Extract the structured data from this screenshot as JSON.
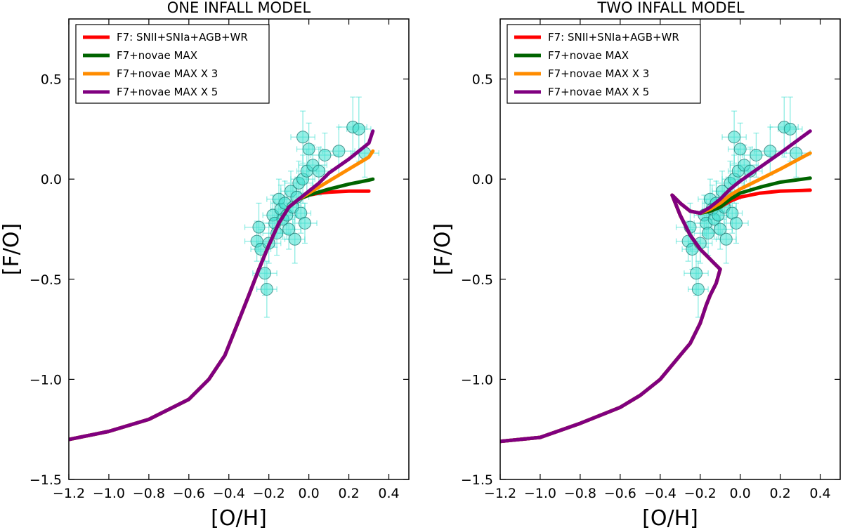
{
  "figure_titles": [
    "ONE INFALL MODEL",
    "TWO INFALL MODEL"
  ],
  "chart_data": [
    {
      "type": "line",
      "title": "ONE INFALL MODEL",
      "xlabel": "[O/H]",
      "ylabel": "[F/O]",
      "xlim": [
        -1.2,
        0.5
      ],
      "ylim": [
        -1.5,
        0.8
      ],
      "xticks": [
        -1.2,
        -1.0,
        -0.8,
        -0.6,
        -0.4,
        -0.2,
        0.0,
        0.2,
        0.4
      ],
      "xtick_labels": [
        "−1.2",
        "−1.0",
        "−0.8",
        "−0.6",
        "−0.4",
        "−0.2",
        "0.0",
        "0.2",
        "0.4"
      ],
      "yticks": [
        -1.5,
        -1.0,
        -0.5,
        0.0,
        0.5
      ],
      "ytick_labels": [
        "−1.5",
        "−1.0",
        "−0.5",
        "0.0",
        "0.5"
      ],
      "grid": false,
      "legend_position": "top-left",
      "series": [
        {
          "name": "F7: SNII+SNIa+AGB+WR",
          "color": "#ff0000",
          "x": [
            -1.2,
            -1.0,
            -0.8,
            -0.6,
            -0.5,
            -0.42,
            -0.36,
            -0.3,
            -0.25,
            -0.2,
            -0.15,
            -0.1,
            -0.05,
            0.0,
            0.05,
            0.1,
            0.2,
            0.3
          ],
          "y": [
            -1.3,
            -1.26,
            -1.2,
            -1.1,
            -1.0,
            -0.88,
            -0.73,
            -0.58,
            -0.45,
            -0.33,
            -0.22,
            -0.14,
            -0.1,
            -0.08,
            -0.07,
            -0.065,
            -0.06,
            -0.06
          ]
        },
        {
          "name": "F7+novae  MAX",
          "color": "#006400",
          "x": [
            -1.2,
            -1.0,
            -0.8,
            -0.6,
            -0.5,
            -0.42,
            -0.36,
            -0.3,
            -0.25,
            -0.2,
            -0.15,
            -0.1,
            -0.05,
            0.0,
            0.05,
            0.1,
            0.2,
            0.3,
            0.32
          ],
          "y": [
            -1.3,
            -1.26,
            -1.2,
            -1.1,
            -1.0,
            -0.88,
            -0.73,
            -0.58,
            -0.45,
            -0.33,
            -0.22,
            -0.14,
            -0.1,
            -0.08,
            -0.065,
            -0.05,
            -0.025,
            -0.005,
            0.0
          ]
        },
        {
          "name": "F7+novae MAX X 3",
          "color": "#ff8c00",
          "x": [
            -1.2,
            -1.0,
            -0.8,
            -0.6,
            -0.5,
            -0.42,
            -0.36,
            -0.3,
            -0.25,
            -0.2,
            -0.15,
            -0.1,
            -0.05,
            0.0,
            0.05,
            0.1,
            0.2,
            0.3,
            0.32
          ],
          "y": [
            -1.3,
            -1.26,
            -1.2,
            -1.1,
            -1.0,
            -0.88,
            -0.73,
            -0.58,
            -0.45,
            -0.33,
            -0.22,
            -0.14,
            -0.1,
            -0.07,
            -0.04,
            -0.01,
            0.05,
            0.11,
            0.14
          ]
        },
        {
          "name": "F7+novae MAX  X 5",
          "color": "#800080",
          "x": [
            -1.2,
            -1.0,
            -0.8,
            -0.6,
            -0.5,
            -0.42,
            -0.36,
            -0.3,
            -0.25,
            -0.2,
            -0.15,
            -0.1,
            -0.05,
            0.0,
            0.05,
            0.1,
            0.2,
            0.3,
            0.32
          ],
          "y": [
            -1.3,
            -1.26,
            -1.2,
            -1.1,
            -1.0,
            -0.88,
            -0.73,
            -0.58,
            -0.45,
            -0.33,
            -0.22,
            -0.14,
            -0.1,
            -0.06,
            -0.02,
            0.03,
            0.1,
            0.18,
            0.24
          ]
        }
      ],
      "observations": {
        "color": "#40e0d0",
        "x": [
          -0.26,
          -0.25,
          -0.24,
          -0.22,
          -0.21,
          -0.2,
          -0.18,
          -0.17,
          -0.16,
          -0.15,
          -0.14,
          -0.13,
          -0.12,
          -0.11,
          -0.1,
          -0.09,
          -0.08,
          -0.07,
          -0.06,
          -0.05,
          -0.04,
          -0.03,
          -0.02,
          -0.01,
          0.0,
          0.02,
          0.05,
          0.08,
          0.15,
          0.22,
          0.25,
          0.28,
          -0.03
        ],
        "y": [
          -0.31,
          -0.24,
          -0.35,
          -0.47,
          -0.55,
          -0.32,
          -0.18,
          -0.22,
          -0.27,
          -0.1,
          -0.15,
          -0.2,
          -0.12,
          -0.18,
          -0.25,
          -0.06,
          -0.14,
          -0.3,
          -0.09,
          -0.02,
          -0.17,
          0.0,
          -0.22,
          0.04,
          0.15,
          0.07,
          0.04,
          0.12,
          0.14,
          0.26,
          0.25,
          0.13,
          0.21
        ],
        "xerr": [
          0.06,
          0.07,
          0.05,
          0.06,
          0.05,
          0.06,
          0.05,
          0.06,
          0.07,
          0.06,
          0.05,
          0.06,
          0.07,
          0.05,
          0.06,
          0.05,
          0.06,
          0.05,
          0.06,
          0.07,
          0.05,
          0.06,
          0.06,
          0.05,
          0.06,
          0.07,
          0.06,
          0.07,
          0.08,
          0.07,
          0.06,
          0.07,
          0.06
        ],
        "yerr": [
          0.1,
          0.12,
          0.1,
          0.11,
          0.14,
          0.1,
          0.1,
          0.12,
          0.11,
          0.1,
          0.12,
          0.1,
          0.11,
          0.12,
          0.1,
          0.1,
          0.11,
          0.12,
          0.1,
          0.11,
          0.1,
          0.12,
          0.1,
          0.11,
          0.13,
          0.1,
          0.12,
          0.11,
          0.12,
          0.15,
          0.16,
          0.12,
          0.13
        ]
      }
    },
    {
      "type": "line",
      "title": "TWO INFALL MODEL",
      "xlabel": "[O/H]",
      "ylabel": "[F/O]",
      "xlim": [
        -1.2,
        0.5
      ],
      "ylim": [
        -1.5,
        0.8
      ],
      "xticks": [
        -1.2,
        -1.0,
        -0.8,
        -0.6,
        -0.4,
        -0.2,
        0.0,
        0.2,
        0.4
      ],
      "xtick_labels": [
        "−1.2",
        "−1.0",
        "−0.8",
        "−0.6",
        "−0.4",
        "−0.2",
        "0.0",
        "0.2",
        "0.4"
      ],
      "yticks": [
        -1.5,
        -1.0,
        -0.5,
        0.0,
        0.5
      ],
      "ytick_labels": [
        "−1.5",
        "−1.0",
        "−0.5",
        "0.0",
        "0.5"
      ],
      "grid": false,
      "legend_position": "top-left",
      "series": [
        {
          "name": "F7: SNII+SNIa+AGB+WR",
          "color": "#ff0000",
          "x": [
            -1.2,
            -1.0,
            -0.8,
            -0.6,
            -0.5,
            -0.4,
            -0.3,
            -0.25,
            -0.2,
            -0.17,
            -0.15,
            -0.12,
            -0.1,
            -0.13,
            -0.16,
            -0.2,
            -0.25,
            -0.3,
            -0.34,
            -0.3,
            -0.25,
            -0.2,
            -0.15,
            -0.1,
            -0.05,
            0.0,
            0.1,
            0.2,
            0.35
          ],
          "y": [
            -1.31,
            -1.29,
            -1.22,
            -1.14,
            -1.08,
            -1.0,
            -0.88,
            -0.82,
            -0.72,
            -0.63,
            -0.58,
            -0.52,
            -0.45,
            -0.42,
            -0.39,
            -0.35,
            -0.28,
            -0.18,
            -0.08,
            -0.12,
            -0.16,
            -0.17,
            -0.16,
            -0.14,
            -0.11,
            -0.09,
            -0.07,
            -0.06,
            -0.055
          ]
        },
        {
          "name": "F7+novae  MAX",
          "color": "#006400",
          "x": [
            -1.2,
            -1.0,
            -0.8,
            -0.6,
            -0.5,
            -0.4,
            -0.3,
            -0.25,
            -0.2,
            -0.17,
            -0.15,
            -0.12,
            -0.1,
            -0.13,
            -0.16,
            -0.2,
            -0.25,
            -0.3,
            -0.34,
            -0.3,
            -0.25,
            -0.2,
            -0.15,
            -0.1,
            -0.05,
            0.0,
            0.1,
            0.2,
            0.35
          ],
          "y": [
            -1.31,
            -1.29,
            -1.22,
            -1.14,
            -1.08,
            -1.0,
            -0.88,
            -0.82,
            -0.72,
            -0.63,
            -0.58,
            -0.52,
            -0.45,
            -0.42,
            -0.39,
            -0.35,
            -0.28,
            -0.18,
            -0.08,
            -0.12,
            -0.16,
            -0.17,
            -0.16,
            -0.14,
            -0.1,
            -0.07,
            -0.04,
            -0.015,
            0.005
          ]
        },
        {
          "name": "F7+novae MAX X 3",
          "color": "#ff8c00",
          "x": [
            -1.2,
            -1.0,
            -0.8,
            -0.6,
            -0.5,
            -0.4,
            -0.3,
            -0.25,
            -0.2,
            -0.17,
            -0.15,
            -0.12,
            -0.1,
            -0.13,
            -0.16,
            -0.2,
            -0.25,
            -0.3,
            -0.34,
            -0.3,
            -0.25,
            -0.2,
            -0.15,
            -0.1,
            -0.05,
            0.0,
            0.1,
            0.2,
            0.35
          ],
          "y": [
            -1.31,
            -1.29,
            -1.22,
            -1.14,
            -1.08,
            -1.0,
            -0.88,
            -0.82,
            -0.72,
            -0.63,
            -0.58,
            -0.52,
            -0.45,
            -0.42,
            -0.39,
            -0.35,
            -0.28,
            -0.18,
            -0.08,
            -0.12,
            -0.16,
            -0.17,
            -0.15,
            -0.12,
            -0.08,
            -0.05,
            0.0,
            0.05,
            0.13
          ]
        },
        {
          "name": "F7+novae MAX  X 5",
          "color": "#800080",
          "x": [
            -1.2,
            -1.0,
            -0.8,
            -0.6,
            -0.5,
            -0.4,
            -0.3,
            -0.25,
            -0.2,
            -0.17,
            -0.15,
            -0.12,
            -0.1,
            -0.13,
            -0.16,
            -0.2,
            -0.25,
            -0.3,
            -0.34,
            -0.3,
            -0.25,
            -0.2,
            -0.15,
            -0.1,
            -0.05,
            0.0,
            0.1,
            0.2,
            0.35
          ],
          "y": [
            -1.31,
            -1.29,
            -1.22,
            -1.14,
            -1.08,
            -1.0,
            -0.88,
            -0.82,
            -0.72,
            -0.63,
            -0.58,
            -0.52,
            -0.45,
            -0.42,
            -0.39,
            -0.35,
            -0.28,
            -0.18,
            -0.08,
            -0.12,
            -0.16,
            -0.17,
            -0.14,
            -0.1,
            -0.05,
            -0.01,
            0.06,
            0.13,
            0.24
          ]
        }
      ],
      "observations": {
        "color": "#40e0d0",
        "x": [
          -0.26,
          -0.25,
          -0.24,
          -0.22,
          -0.21,
          -0.2,
          -0.18,
          -0.17,
          -0.16,
          -0.15,
          -0.14,
          -0.13,
          -0.12,
          -0.11,
          -0.1,
          -0.09,
          -0.08,
          -0.07,
          -0.06,
          -0.05,
          -0.04,
          -0.03,
          -0.02,
          -0.01,
          0.0,
          0.02,
          0.05,
          0.08,
          0.15,
          0.22,
          0.25,
          0.28,
          -0.03
        ],
        "y": [
          -0.31,
          -0.24,
          -0.35,
          -0.47,
          -0.55,
          -0.32,
          -0.18,
          -0.22,
          -0.27,
          -0.1,
          -0.15,
          -0.2,
          -0.12,
          -0.18,
          -0.25,
          -0.06,
          -0.14,
          -0.3,
          -0.09,
          -0.02,
          -0.17,
          0.0,
          -0.22,
          0.04,
          0.15,
          0.07,
          0.04,
          0.12,
          0.14,
          0.26,
          0.25,
          0.13,
          0.21
        ],
        "xerr": [
          0.06,
          0.07,
          0.05,
          0.06,
          0.05,
          0.06,
          0.05,
          0.06,
          0.07,
          0.06,
          0.05,
          0.06,
          0.07,
          0.05,
          0.06,
          0.05,
          0.06,
          0.05,
          0.06,
          0.07,
          0.05,
          0.06,
          0.06,
          0.05,
          0.06,
          0.07,
          0.06,
          0.07,
          0.08,
          0.07,
          0.06,
          0.07,
          0.06
        ],
        "yerr": [
          0.1,
          0.12,
          0.1,
          0.11,
          0.14,
          0.1,
          0.1,
          0.12,
          0.11,
          0.1,
          0.12,
          0.1,
          0.11,
          0.12,
          0.1,
          0.1,
          0.11,
          0.12,
          0.1,
          0.11,
          0.1,
          0.12,
          0.1,
          0.11,
          0.13,
          0.1,
          0.12,
          0.11,
          0.12,
          0.15,
          0.16,
          0.12,
          0.13
        ]
      }
    }
  ]
}
